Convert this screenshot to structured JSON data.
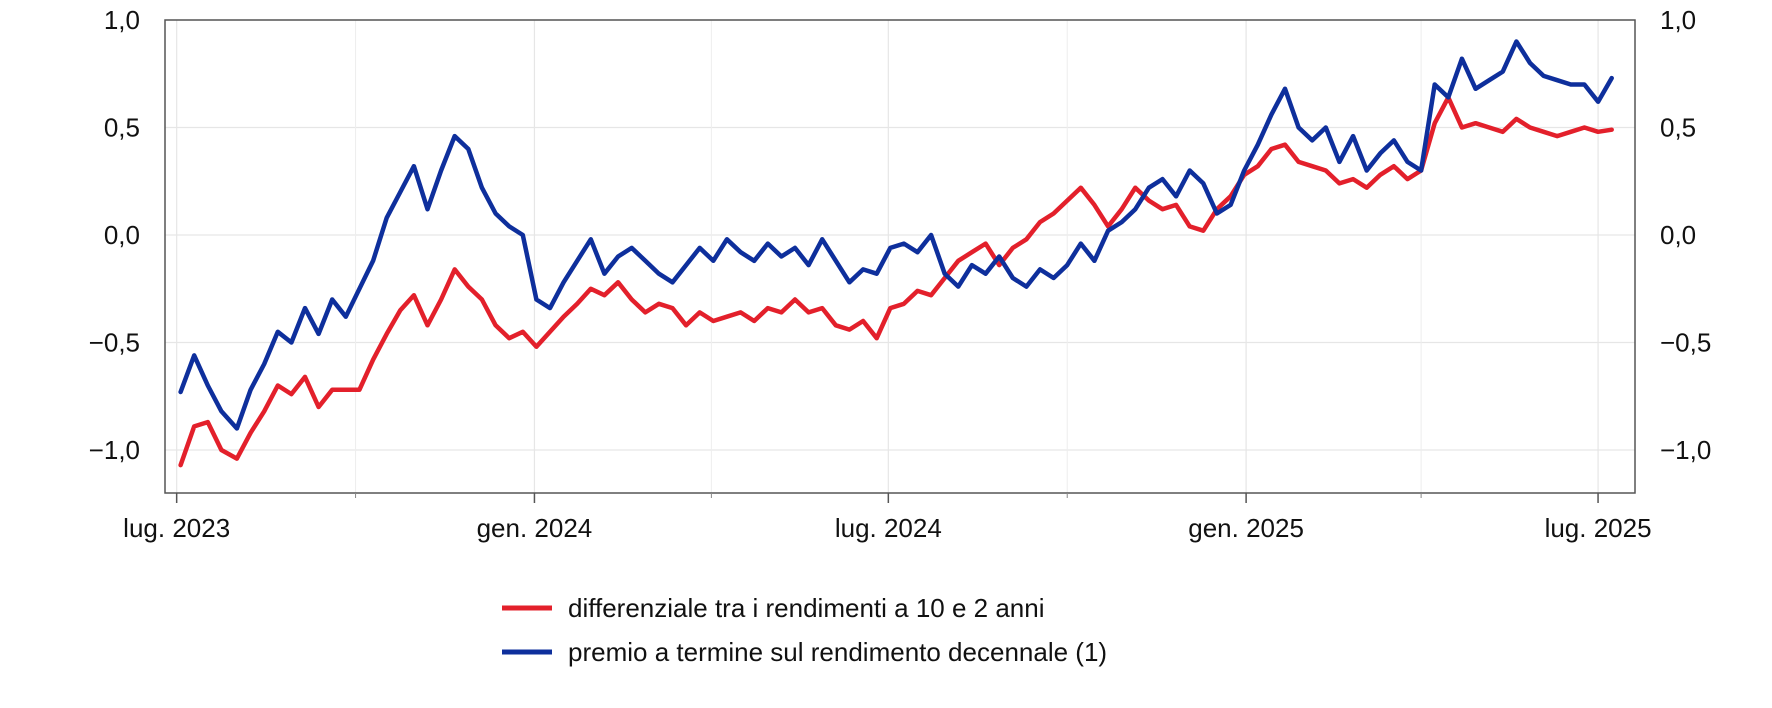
{
  "chart_data": {
    "type": "line",
    "title": "",
    "xlabel": "",
    "ylabel": "",
    "ylim": [
      -1.2,
      1.0
    ],
    "y_ticks": [
      1.0,
      0.5,
      0.0,
      -0.5,
      -1.0
    ],
    "y_tick_labels": [
      "1,0",
      "0,5",
      "0,0",
      "−0,5",
      "−1,0"
    ],
    "x_range": [
      "2023-06-25",
      "2025-07-20"
    ],
    "x_ticks": [
      "2023-07-01",
      "2024-01-01",
      "2024-07-01",
      "2025-01-01",
      "2025-07-01"
    ],
    "x_tick_labels": [
      "lug. 2023",
      "gen. 2024",
      "lug. 2024",
      "gen. 2025",
      "lug. 2025"
    ],
    "x_minor_ticks": [
      "2023-10-01",
      "2024-04-01",
      "2024-10-01",
      "2025-04-01"
    ],
    "grid": true,
    "dual_y_axis": true,
    "legend_position": "bottom-center",
    "series": [
      {
        "name": "differenziale tra i rendimenti a 10 e 2 anni",
        "color": "#e3202b",
        "points": [
          [
            "2023-07-03",
            -1.07
          ],
          [
            "2023-07-10",
            -0.89
          ],
          [
            "2023-07-17",
            -0.87
          ],
          [
            "2023-07-24",
            -1.0
          ],
          [
            "2023-08-01",
            -1.04
          ],
          [
            "2023-08-08",
            -0.92
          ],
          [
            "2023-08-15",
            -0.82
          ],
          [
            "2023-08-22",
            -0.7
          ],
          [
            "2023-08-29",
            -0.74
          ],
          [
            "2023-09-05",
            -0.66
          ],
          [
            "2023-09-12",
            -0.8
          ],
          [
            "2023-09-19",
            -0.72
          ],
          [
            "2023-09-26",
            -0.72
          ],
          [
            "2023-10-03",
            -0.72
          ],
          [
            "2023-10-10",
            -0.58
          ],
          [
            "2023-10-17",
            -0.46
          ],
          [
            "2023-10-24",
            -0.35
          ],
          [
            "2023-10-31",
            -0.28
          ],
          [
            "2023-11-07",
            -0.42
          ],
          [
            "2023-11-14",
            -0.3
          ],
          [
            "2023-11-21",
            -0.16
          ],
          [
            "2023-11-28",
            -0.24
          ],
          [
            "2023-12-05",
            -0.3
          ],
          [
            "2023-12-12",
            -0.42
          ],
          [
            "2023-12-19",
            -0.48
          ],
          [
            "2023-12-26",
            -0.45
          ],
          [
            "2024-01-02",
            -0.52
          ],
          [
            "2024-01-09",
            -0.45
          ],
          [
            "2024-01-16",
            -0.38
          ],
          [
            "2024-01-23",
            -0.32
          ],
          [
            "2024-01-30",
            -0.25
          ],
          [
            "2024-02-06",
            -0.28
          ],
          [
            "2024-02-13",
            -0.22
          ],
          [
            "2024-02-20",
            -0.3
          ],
          [
            "2024-02-27",
            -0.36
          ],
          [
            "2024-03-05",
            -0.32
          ],
          [
            "2024-03-12",
            -0.34
          ],
          [
            "2024-03-19",
            -0.42
          ],
          [
            "2024-03-26",
            -0.36
          ],
          [
            "2024-04-02",
            -0.4
          ],
          [
            "2024-04-09",
            -0.38
          ],
          [
            "2024-04-16",
            -0.36
          ],
          [
            "2024-04-23",
            -0.4
          ],
          [
            "2024-04-30",
            -0.34
          ],
          [
            "2024-05-07",
            -0.36
          ],
          [
            "2024-05-14",
            -0.3
          ],
          [
            "2024-05-21",
            -0.36
          ],
          [
            "2024-05-28",
            -0.34
          ],
          [
            "2024-06-04",
            -0.42
          ],
          [
            "2024-06-11",
            -0.44
          ],
          [
            "2024-06-18",
            -0.4
          ],
          [
            "2024-06-25",
            -0.48
          ],
          [
            "2024-07-02",
            -0.34
          ],
          [
            "2024-07-09",
            -0.32
          ],
          [
            "2024-07-16",
            -0.26
          ],
          [
            "2024-07-23",
            -0.28
          ],
          [
            "2024-07-30",
            -0.2
          ],
          [
            "2024-08-06",
            -0.12
          ],
          [
            "2024-08-13",
            -0.08
          ],
          [
            "2024-08-20",
            -0.04
          ],
          [
            "2024-08-27",
            -0.14
          ],
          [
            "2024-09-03",
            -0.06
          ],
          [
            "2024-09-10",
            -0.02
          ],
          [
            "2024-09-17",
            0.06
          ],
          [
            "2024-09-24",
            0.1
          ],
          [
            "2024-10-01",
            0.16
          ],
          [
            "2024-10-08",
            0.22
          ],
          [
            "2024-10-15",
            0.14
          ],
          [
            "2024-10-22",
            0.04
          ],
          [
            "2024-10-29",
            0.12
          ],
          [
            "2024-11-05",
            0.22
          ],
          [
            "2024-11-12",
            0.16
          ],
          [
            "2024-11-19",
            0.12
          ],
          [
            "2024-11-26",
            0.14
          ],
          [
            "2024-12-03",
            0.04
          ],
          [
            "2024-12-10",
            0.02
          ],
          [
            "2024-12-17",
            0.12
          ],
          [
            "2024-12-24",
            0.18
          ],
          [
            "2024-12-31",
            0.28
          ],
          [
            "2025-01-07",
            0.32
          ],
          [
            "2025-01-14",
            0.4
          ],
          [
            "2025-01-21",
            0.42
          ],
          [
            "2025-01-28",
            0.34
          ],
          [
            "2025-02-04",
            0.32
          ],
          [
            "2025-02-11",
            0.3
          ],
          [
            "2025-02-18",
            0.24
          ],
          [
            "2025-02-25",
            0.26
          ],
          [
            "2025-03-04",
            0.22
          ],
          [
            "2025-03-11",
            0.28
          ],
          [
            "2025-03-18",
            0.32
          ],
          [
            "2025-03-25",
            0.26
          ],
          [
            "2025-04-01",
            0.3
          ],
          [
            "2025-04-08",
            0.52
          ],
          [
            "2025-04-15",
            0.64
          ],
          [
            "2025-04-22",
            0.5
          ],
          [
            "2025-04-29",
            0.52
          ],
          [
            "2025-05-06",
            0.5
          ],
          [
            "2025-05-13",
            0.48
          ],
          [
            "2025-05-20",
            0.54
          ],
          [
            "2025-05-27",
            0.5
          ],
          [
            "2025-06-03",
            0.48
          ],
          [
            "2025-06-10",
            0.46
          ],
          [
            "2025-06-17",
            0.48
          ],
          [
            "2025-06-24",
            0.5
          ],
          [
            "2025-07-01",
            0.48
          ],
          [
            "2025-07-08",
            0.49
          ]
        ]
      },
      {
        "name": "premio a termine sul rendimento decennale (1)",
        "color": "#0e2f9c",
        "points": [
          [
            "2023-07-03",
            -0.73
          ],
          [
            "2023-07-10",
            -0.56
          ],
          [
            "2023-07-17",
            -0.7
          ],
          [
            "2023-07-24",
            -0.82
          ],
          [
            "2023-08-01",
            -0.9
          ],
          [
            "2023-08-08",
            -0.72
          ],
          [
            "2023-08-15",
            -0.6
          ],
          [
            "2023-08-22",
            -0.45
          ],
          [
            "2023-08-29",
            -0.5
          ],
          [
            "2023-09-05",
            -0.34
          ],
          [
            "2023-09-12",
            -0.46
          ],
          [
            "2023-09-19",
            -0.3
          ],
          [
            "2023-09-26",
            -0.38
          ],
          [
            "2023-10-03",
            -0.25
          ],
          [
            "2023-10-10",
            -0.12
          ],
          [
            "2023-10-17",
            0.08
          ],
          [
            "2023-10-24",
            0.2
          ],
          [
            "2023-10-31",
            0.32
          ],
          [
            "2023-11-07",
            0.12
          ],
          [
            "2023-11-14",
            0.3
          ],
          [
            "2023-11-21",
            0.46
          ],
          [
            "2023-11-28",
            0.4
          ],
          [
            "2023-12-05",
            0.22
          ],
          [
            "2023-12-12",
            0.1
          ],
          [
            "2023-12-19",
            0.04
          ],
          [
            "2023-12-26",
            0.0
          ],
          [
            "2024-01-02",
            -0.3
          ],
          [
            "2024-01-09",
            -0.34
          ],
          [
            "2024-01-16",
            -0.22
          ],
          [
            "2024-01-23",
            -0.12
          ],
          [
            "2024-01-30",
            -0.02
          ],
          [
            "2024-02-06",
            -0.18
          ],
          [
            "2024-02-13",
            -0.1
          ],
          [
            "2024-02-20",
            -0.06
          ],
          [
            "2024-02-27",
            -0.12
          ],
          [
            "2024-03-05",
            -0.18
          ],
          [
            "2024-03-12",
            -0.22
          ],
          [
            "2024-03-19",
            -0.14
          ],
          [
            "2024-03-26",
            -0.06
          ],
          [
            "2024-04-02",
            -0.12
          ],
          [
            "2024-04-09",
            -0.02
          ],
          [
            "2024-04-16",
            -0.08
          ],
          [
            "2024-04-23",
            -0.12
          ],
          [
            "2024-04-30",
            -0.04
          ],
          [
            "2024-05-07",
            -0.1
          ],
          [
            "2024-05-14",
            -0.06
          ],
          [
            "2024-05-21",
            -0.14
          ],
          [
            "2024-05-28",
            -0.02
          ],
          [
            "2024-06-04",
            -0.12
          ],
          [
            "2024-06-11",
            -0.22
          ],
          [
            "2024-06-18",
            -0.16
          ],
          [
            "2024-06-25",
            -0.18
          ],
          [
            "2024-07-02",
            -0.06
          ],
          [
            "2024-07-09",
            -0.04
          ],
          [
            "2024-07-16",
            -0.08
          ],
          [
            "2024-07-23",
            0.0
          ],
          [
            "2024-07-30",
            -0.18
          ],
          [
            "2024-08-06",
            -0.24
          ],
          [
            "2024-08-13",
            -0.14
          ],
          [
            "2024-08-20",
            -0.18
          ],
          [
            "2024-08-27",
            -0.1
          ],
          [
            "2024-09-03",
            -0.2
          ],
          [
            "2024-09-10",
            -0.24
          ],
          [
            "2024-09-17",
            -0.16
          ],
          [
            "2024-09-24",
            -0.2
          ],
          [
            "2024-10-01",
            -0.14
          ],
          [
            "2024-10-08",
            -0.04
          ],
          [
            "2024-10-15",
            -0.12
          ],
          [
            "2024-10-22",
            0.02
          ],
          [
            "2024-10-29",
            0.06
          ],
          [
            "2024-11-05",
            0.12
          ],
          [
            "2024-11-12",
            0.22
          ],
          [
            "2024-11-19",
            0.26
          ],
          [
            "2024-11-26",
            0.18
          ],
          [
            "2024-12-03",
            0.3
          ],
          [
            "2024-12-10",
            0.24
          ],
          [
            "2024-12-17",
            0.1
          ],
          [
            "2024-12-24",
            0.14
          ],
          [
            "2024-12-31",
            0.3
          ],
          [
            "2025-01-07",
            0.42
          ],
          [
            "2025-01-14",
            0.56
          ],
          [
            "2025-01-21",
            0.68
          ],
          [
            "2025-01-28",
            0.5
          ],
          [
            "2025-02-04",
            0.44
          ],
          [
            "2025-02-11",
            0.5
          ],
          [
            "2025-02-18",
            0.34
          ],
          [
            "2025-02-25",
            0.46
          ],
          [
            "2025-03-04",
            0.3
          ],
          [
            "2025-03-11",
            0.38
          ],
          [
            "2025-03-18",
            0.44
          ],
          [
            "2025-03-25",
            0.34
          ],
          [
            "2025-04-01",
            0.3
          ],
          [
            "2025-04-08",
            0.7
          ],
          [
            "2025-04-15",
            0.64
          ],
          [
            "2025-04-22",
            0.82
          ],
          [
            "2025-04-29",
            0.68
          ],
          [
            "2025-05-06",
            0.72
          ],
          [
            "2025-05-13",
            0.76
          ],
          [
            "2025-05-20",
            0.9
          ],
          [
            "2025-05-27",
            0.8
          ],
          [
            "2025-06-03",
            0.74
          ],
          [
            "2025-06-10",
            0.72
          ],
          [
            "2025-06-17",
            0.7
          ],
          [
            "2025-06-24",
            0.7
          ],
          [
            "2025-07-01",
            0.62
          ],
          [
            "2025-07-08",
            0.73
          ]
        ]
      }
    ]
  }
}
